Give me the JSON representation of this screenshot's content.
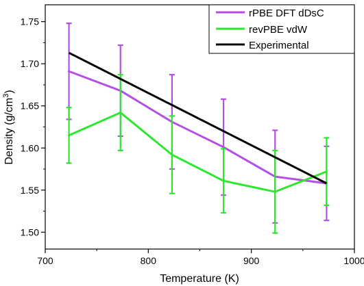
{
  "chart_data": {
    "type": "line",
    "title": "",
    "xlabel": "Temperature (K)",
    "ylabel_main": "Density (g/cm",
    "ylabel_sup": "3",
    "ylabel_close": ")",
    "xlim": [
      700,
      1000
    ],
    "ylim": [
      1.48,
      1.77
    ],
    "x_ticks": [
      700,
      800,
      900,
      1000
    ],
    "y_ticks": [
      1.5,
      1.55,
      1.6,
      1.65,
      1.7,
      1.75
    ],
    "grid": false,
    "legend_position": "top-right",
    "x": [
      723,
      773,
      823,
      873,
      923,
      973
    ],
    "series": [
      {
        "name": "rPBE DFT dDsC",
        "color": "#b44fe6",
        "values": [
          1.691,
          1.668,
          1.631,
          1.601,
          1.566,
          1.558
        ],
        "error": [
          0.057,
          0.054,
          0.056,
          0.057,
          0.055,
          0.044
        ]
      },
      {
        "name": "revPBE vdW",
        "color": "#2ee62e",
        "values": [
          1.615,
          1.642,
          1.592,
          1.561,
          1.548,
          1.572
        ],
        "error": [
          0.033,
          0.045,
          0.046,
          0.038,
          0.049,
          0.04
        ]
      },
      {
        "name": "Experimental",
        "color": "#000000",
        "x": [
          723,
          973
        ],
        "values": [
          1.713,
          1.558
        ]
      }
    ]
  }
}
